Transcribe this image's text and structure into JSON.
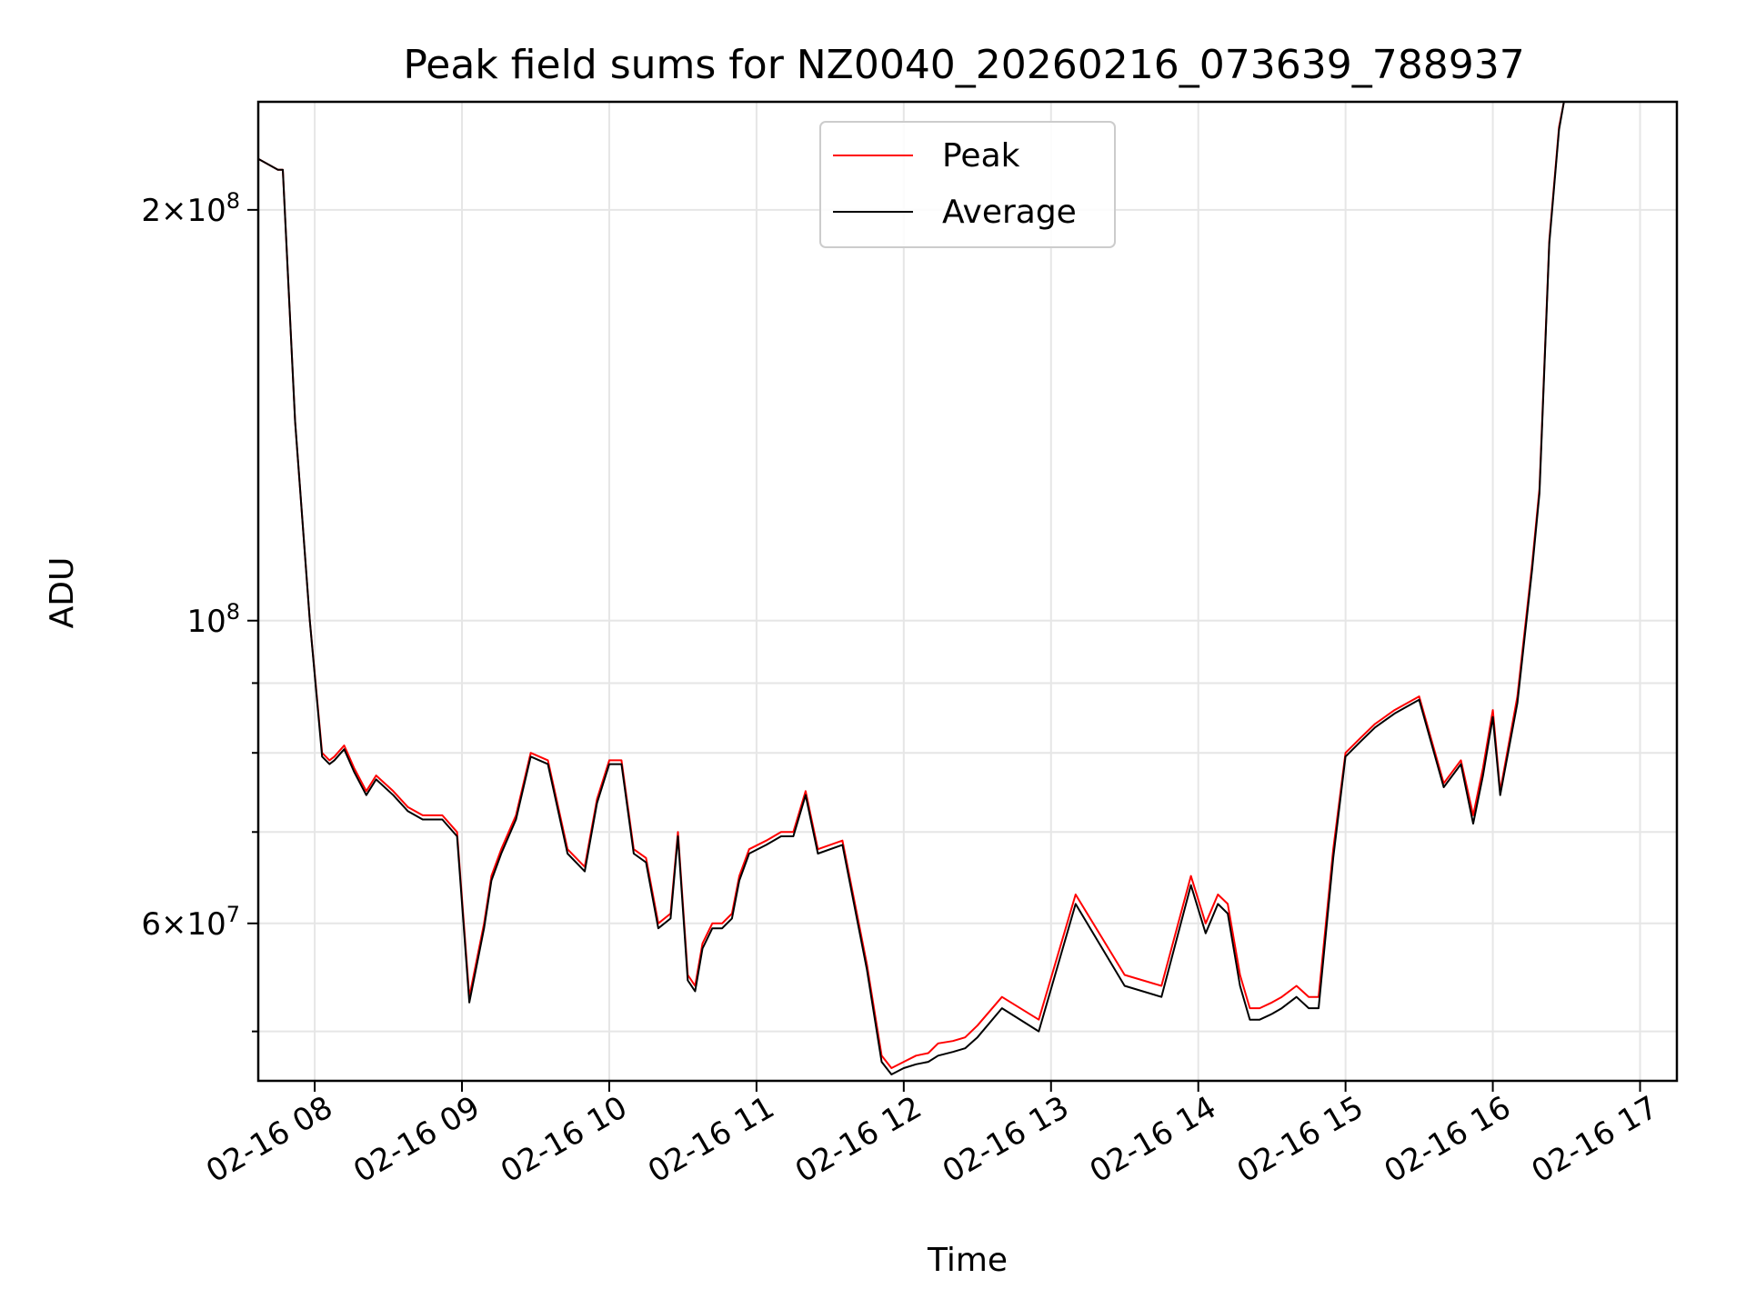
{
  "chart_data": {
    "type": "line",
    "title": "Peak field sums for NZ0040_20260216_073639_788937",
    "xlabel": "Time",
    "ylabel": "ADU",
    "xlim": [
      "2026-02-16T07:37",
      "2026-02-16T17:15"
    ],
    "ylim": [
      46000000,
      240000000
    ],
    "yscale": "log",
    "grid": true,
    "legend": "upper center",
    "x_ticks": [
      "02-16 08",
      "02-16 09",
      "02-16 10",
      "02-16 11",
      "02-16 12",
      "02-16 13",
      "02-16 14",
      "02-16 15",
      "02-16 16",
      "02-16 17"
    ],
    "y_major_ticks": [
      {
        "value": 60000000,
        "mantissa": "6",
        "exp": "7"
      },
      {
        "value": 100000000,
        "mantissa": "",
        "exp": "8"
      },
      {
        "value": 200000000,
        "mantissa": "2",
        "exp": "8"
      }
    ],
    "y_minor_ticks": [
      50000000,
      70000000,
      80000000,
      90000000,
      300000000
    ],
    "series": [
      {
        "name": "Peak",
        "color": "#ff0000",
        "x": [
          "2026-02-16T07:37",
          "2026-02-16T07:45",
          "2026-02-16T07:47",
          "2026-02-16T07:52",
          "2026-02-16T07:58",
          "2026-02-16T08:03",
          "2026-02-16T08:06",
          "2026-02-16T08:08",
          "2026-02-16T08:12",
          "2026-02-16T08:16",
          "2026-02-16T08:21",
          "2026-02-16T08:25",
          "2026-02-16T08:32",
          "2026-02-16T08:38",
          "2026-02-16T08:44",
          "2026-02-16T08:52",
          "2026-02-16T08:58",
          "2026-02-16T09:03",
          "2026-02-16T09:09",
          "2026-02-16T09:12",
          "2026-02-16T09:16",
          "2026-02-16T09:22",
          "2026-02-16T09:28",
          "2026-02-16T09:35",
          "2026-02-16T09:43",
          "2026-02-16T09:50",
          "2026-02-16T09:55",
          "2026-02-16T10:00",
          "2026-02-16T10:05",
          "2026-02-16T10:10",
          "2026-02-16T10:15",
          "2026-02-16T10:20",
          "2026-02-16T10:25",
          "2026-02-16T10:28",
          "2026-02-16T10:32",
          "2026-02-16T10:35",
          "2026-02-16T10:38",
          "2026-02-16T10:42",
          "2026-02-16T10:46",
          "2026-02-16T10:50",
          "2026-02-16T10:53",
          "2026-02-16T10:57",
          "2026-02-16T11:04",
          "2026-02-16T11:10",
          "2026-02-16T11:15",
          "2026-02-16T11:20",
          "2026-02-16T11:25",
          "2026-02-16T11:35",
          "2026-02-16T11:45",
          "2026-02-16T11:51",
          "2026-02-16T11:55",
          "2026-02-16T12:00",
          "2026-02-16T12:05",
          "2026-02-16T12:10",
          "2026-02-16T12:14",
          "2026-02-16T12:20",
          "2026-02-16T12:25",
          "2026-02-16T12:30",
          "2026-02-16T12:40",
          "2026-02-16T12:55",
          "2026-02-16T13:10",
          "2026-02-16T13:30",
          "2026-02-16T13:45",
          "2026-02-16T13:57",
          "2026-02-16T14:03",
          "2026-02-16T14:08",
          "2026-02-16T14:12",
          "2026-02-16T14:17",
          "2026-02-16T14:21",
          "2026-02-16T14:25",
          "2026-02-16T14:30",
          "2026-02-16T14:34",
          "2026-02-16T14:40",
          "2026-02-16T14:45",
          "2026-02-16T14:49",
          "2026-02-16T14:55",
          "2026-02-16T15:00",
          "2026-02-16T15:06",
          "2026-02-16T15:12",
          "2026-02-16T15:20",
          "2026-02-16T15:30",
          "2026-02-16T15:40",
          "2026-02-16T15:47",
          "2026-02-16T15:52",
          "2026-02-16T15:56",
          "2026-02-16T16:00",
          "2026-02-16T16:03",
          "2026-02-16T16:10",
          "2026-02-16T16:16",
          "2026-02-16T16:19",
          "2026-02-16T16:23",
          "2026-02-16T16:27",
          "2026-02-16T16:29",
          "2026-02-16T16:32",
          "2026-02-16T16:36",
          "2026-02-16T16:38",
          "2026-02-16T16:42",
          "2026-02-16T16:45",
          "2026-02-16T16:48",
          "2026-02-16T16:52",
          "2026-02-16T16:55",
          "2026-02-16T16:58",
          "2026-02-16T17:01",
          "2026-02-16T17:05",
          "2026-02-16T17:15"
        ],
        "y": [
          218000000,
          214000000,
          214000000,
          140000000,
          100000000,
          80000000,
          79000000,
          79500000,
          81000000,
          78000000,
          75000000,
          77000000,
          75000000,
          73000000,
          72000000,
          72000000,
          70000000,
          53000000,
          60000000,
          65000000,
          68000000,
          72000000,
          80000000,
          79000000,
          68000000,
          66000000,
          74000000,
          79000000,
          79000000,
          68000000,
          67000000,
          60000000,
          61000000,
          70000000,
          55000000,
          54000000,
          58000000,
          60000000,
          60000000,
          61000000,
          65000000,
          68000000,
          69000000,
          70000000,
          70000000,
          75000000,
          68000000,
          69000000,
          56000000,
          48000000,
          47000000,
          47500000,
          48000000,
          48200000,
          49000000,
          49200000,
          49500000,
          50500000,
          53000000,
          51000000,
          63000000,
          55000000,
          54000000,
          65000000,
          60000000,
          63000000,
          62000000,
          55000000,
          52000000,
          52000000,
          52500000,
          53000000,
          54000000,
          53000000,
          53000000,
          68000000,
          80000000,
          82000000,
          84000000,
          86000000,
          88000000,
          76000000,
          79000000,
          72000000,
          78000000,
          86000000,
          75000000,
          88000000,
          110000000,
          125000000,
          190000000,
          230000000,
          240000000,
          240000000,
          240000000,
          240000000,
          240000000,
          240000000,
          240000000,
          240000000,
          240000000,
          240000000,
          240000000,
          240000000,
          240000000
        ]
      },
      {
        "name": "Average",
        "color": "#000000",
        "x": [
          "2026-02-16T07:37",
          "2026-02-16T07:45",
          "2026-02-16T07:47",
          "2026-02-16T07:52",
          "2026-02-16T07:58",
          "2026-02-16T08:03",
          "2026-02-16T08:06",
          "2026-02-16T08:08",
          "2026-02-16T08:12",
          "2026-02-16T08:16",
          "2026-02-16T08:21",
          "2026-02-16T08:25",
          "2026-02-16T08:32",
          "2026-02-16T08:38",
          "2026-02-16T08:44",
          "2026-02-16T08:52",
          "2026-02-16T08:58",
          "2026-02-16T09:03",
          "2026-02-16T09:09",
          "2026-02-16T09:12",
          "2026-02-16T09:16",
          "2026-02-16T09:22",
          "2026-02-16T09:28",
          "2026-02-16T09:35",
          "2026-02-16T09:43",
          "2026-02-16T09:50",
          "2026-02-16T09:55",
          "2026-02-16T10:00",
          "2026-02-16T10:05",
          "2026-02-16T10:10",
          "2026-02-16T10:15",
          "2026-02-16T10:20",
          "2026-02-16T10:25",
          "2026-02-16T10:28",
          "2026-02-16T10:32",
          "2026-02-16T10:35",
          "2026-02-16T10:38",
          "2026-02-16T10:42",
          "2026-02-16T10:46",
          "2026-02-16T10:50",
          "2026-02-16T10:53",
          "2026-02-16T10:57",
          "2026-02-16T11:04",
          "2026-02-16T11:10",
          "2026-02-16T11:15",
          "2026-02-16T11:20",
          "2026-02-16T11:25",
          "2026-02-16T11:35",
          "2026-02-16T11:45",
          "2026-02-16T11:51",
          "2026-02-16T11:55",
          "2026-02-16T12:00",
          "2026-02-16T12:05",
          "2026-02-16T12:10",
          "2026-02-16T12:14",
          "2026-02-16T12:20",
          "2026-02-16T12:25",
          "2026-02-16T12:30",
          "2026-02-16T12:40",
          "2026-02-16T12:55",
          "2026-02-16T13:10",
          "2026-02-16T13:30",
          "2026-02-16T13:45",
          "2026-02-16T13:57",
          "2026-02-16T14:03",
          "2026-02-16T14:08",
          "2026-02-16T14:12",
          "2026-02-16T14:17",
          "2026-02-16T14:21",
          "2026-02-16T14:25",
          "2026-02-16T14:30",
          "2026-02-16T14:34",
          "2026-02-16T14:40",
          "2026-02-16T14:45",
          "2026-02-16T14:49",
          "2026-02-16T14:55",
          "2026-02-16T15:00",
          "2026-02-16T15:06",
          "2026-02-16T15:12",
          "2026-02-16T15:20",
          "2026-02-16T15:30",
          "2026-02-16T15:40",
          "2026-02-16T15:47",
          "2026-02-16T15:52",
          "2026-02-16T15:56",
          "2026-02-16T16:00",
          "2026-02-16T16:03",
          "2026-02-16T16:10",
          "2026-02-16T16:16",
          "2026-02-16T16:19",
          "2026-02-16T16:23",
          "2026-02-16T16:27",
          "2026-02-16T16:29",
          "2026-02-16T16:32",
          "2026-02-16T16:36",
          "2026-02-16T16:38",
          "2026-02-16T16:42",
          "2026-02-16T16:45",
          "2026-02-16T16:48",
          "2026-02-16T16:52",
          "2026-02-16T16:55",
          "2026-02-16T16:58",
          "2026-02-16T17:01",
          "2026-02-16T17:05",
          "2026-02-16T17:15"
        ],
        "y": [
          218000000,
          214000000,
          214000000,
          140000000,
          100000000,
          79500000,
          78500000,
          79000000,
          80500000,
          77500000,
          74500000,
          76500000,
          74500000,
          72500000,
          71500000,
          71500000,
          69500000,
          52500000,
          59500000,
          64500000,
          67500000,
          71500000,
          79500000,
          78500000,
          67500000,
          65500000,
          73500000,
          78500000,
          78500000,
          67500000,
          66500000,
          59500000,
          60500000,
          69500000,
          54500000,
          53500000,
          57500000,
          59500000,
          59500000,
          60500000,
          64500000,
          67500000,
          68500000,
          69500000,
          69500000,
          74500000,
          67500000,
          68500000,
          55500000,
          47500000,
          46500000,
          47000000,
          47300000,
          47500000,
          48000000,
          48300000,
          48600000,
          49500000,
          52000000,
          50000000,
          62000000,
          54000000,
          53000000,
          64000000,
          59000000,
          62000000,
          61000000,
          54000000,
          51000000,
          51000000,
          51500000,
          52000000,
          53000000,
          52000000,
          52000000,
          67000000,
          79500000,
          81500000,
          83500000,
          85500000,
          87500000,
          75500000,
          78500000,
          71000000,
          77000000,
          85000000,
          74500000,
          87000000,
          109000000,
          124000000,
          189000000,
          229000000,
          240000000,
          240000000,
          240000000,
          240000000,
          240000000,
          240000000,
          240000000,
          240000000,
          240000000,
          240000000,
          240000000,
          240000000,
          240000000
        ]
      }
    ]
  }
}
